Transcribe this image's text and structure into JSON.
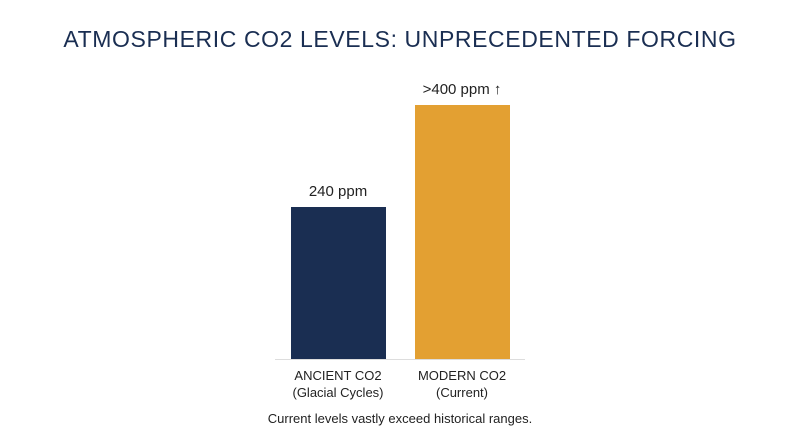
{
  "chart_data": {
    "type": "bar",
    "title": "ATMOSPHERIC CO2 LEVELS: UNPRECEDENTED FORCING",
    "categories": [
      "ANCIENT CO2\n(Glacial Cycles)",
      "MODERN CO2\n(Current)"
    ],
    "values": [
      240,
      400
    ],
    "value_labels": [
      "240 ppm",
      ">400 ppm ↑"
    ],
    "colors": [
      "#1a2e52",
      "#e3a032"
    ],
    "caption": "Current levels vastly exceed historical ranges."
  }
}
